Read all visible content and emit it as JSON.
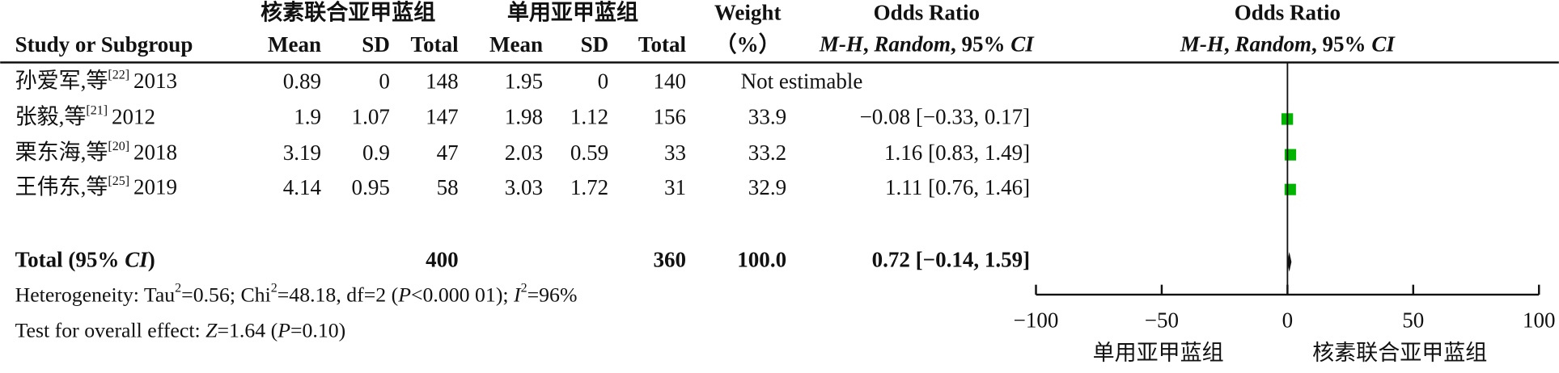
{
  "chart_data": {
    "type": "forest",
    "group_headers": [
      "核素联合亚甲蓝组",
      "单用亚甲蓝组"
    ],
    "weight_header": [
      "Weight",
      "（%）"
    ],
    "or_header": "Odds Ratio",
    "method_parts": [
      "M-H",
      ", ",
      "Random",
      ", 95% ",
      "CI"
    ],
    "columns": [
      "Study or Subgroup",
      "Mean",
      "SD",
      "Total",
      "Mean",
      "SD",
      "Total"
    ],
    "studies": [
      {
        "name": "孙爱军,等",
        "ref": "[22]",
        "year": "2013",
        "cells": [
          "0.89",
          "0",
          "148",
          "1.95",
          "0",
          "140"
        ]
      },
      {
        "name": "张毅,等",
        "ref": "[21]",
        "year": "2012",
        "cells": [
          "1.9",
          "1.07",
          "147",
          "1.98",
          "1.12",
          "156"
        ]
      },
      {
        "name": "栗东海,等",
        "ref": "[20]",
        "year": "2018",
        "cells": [
          "3.19",
          "0.9",
          "47",
          "2.03",
          "0.59",
          "33"
        ]
      },
      {
        "name": "王伟东,等",
        "ref": "[25]",
        "year": "2019",
        "cells": [
          "4.14",
          "0.95",
          "58",
          "3.03",
          "1.72",
          "31"
        ]
      }
    ],
    "weights": [
      null,
      33.9,
      33.2,
      32.9
    ],
    "values": [
      null,
      -0.08,
      1.16,
      1.11
    ],
    "lower": [
      null,
      -0.33,
      0.83,
      0.76
    ],
    "upper": [
      null,
      0.17,
      1.49,
      1.46
    ],
    "value_labels": [
      "Not estimable",
      "−0.08 [−0.33, 0.17]",
      "1.16 [0.83, 1.49]",
      "1.11 [0.76, 1.46]"
    ],
    "color": "#00b400",
    "total": {
      "label_parts": [
        "Total (95% ",
        "CI",
        ")"
      ],
      "exp_total": "400",
      "ctrl_total": "360",
      "weight": "100.0",
      "value": 0.72,
      "lower": -0.14,
      "upper": 1.59,
      "value_label": "0.72 [−0.14, 1.59]"
    },
    "heterogeneity": [
      "Heterogeneity: Tau",
      "2",
      "=0.56; Chi",
      "2",
      "=48.18, df=2 (",
      "P",
      "<0.000 01); ",
      "I",
      "2",
      "=96%"
    ],
    "overall": [
      "Test for overall effect: ",
      "Z",
      "=1.64 (",
      "P",
      "=0.10)"
    ],
    "xlim": [
      -100,
      100
    ],
    "xticks": [
      {
        "value": -100,
        "label": "−100"
      },
      {
        "value": -50,
        "label": "−50"
      },
      0,
      50,
      100
    ],
    "xlabel_left": "单用亚甲蓝组",
    "xlabel_right": "核素联合亚甲蓝组"
  }
}
